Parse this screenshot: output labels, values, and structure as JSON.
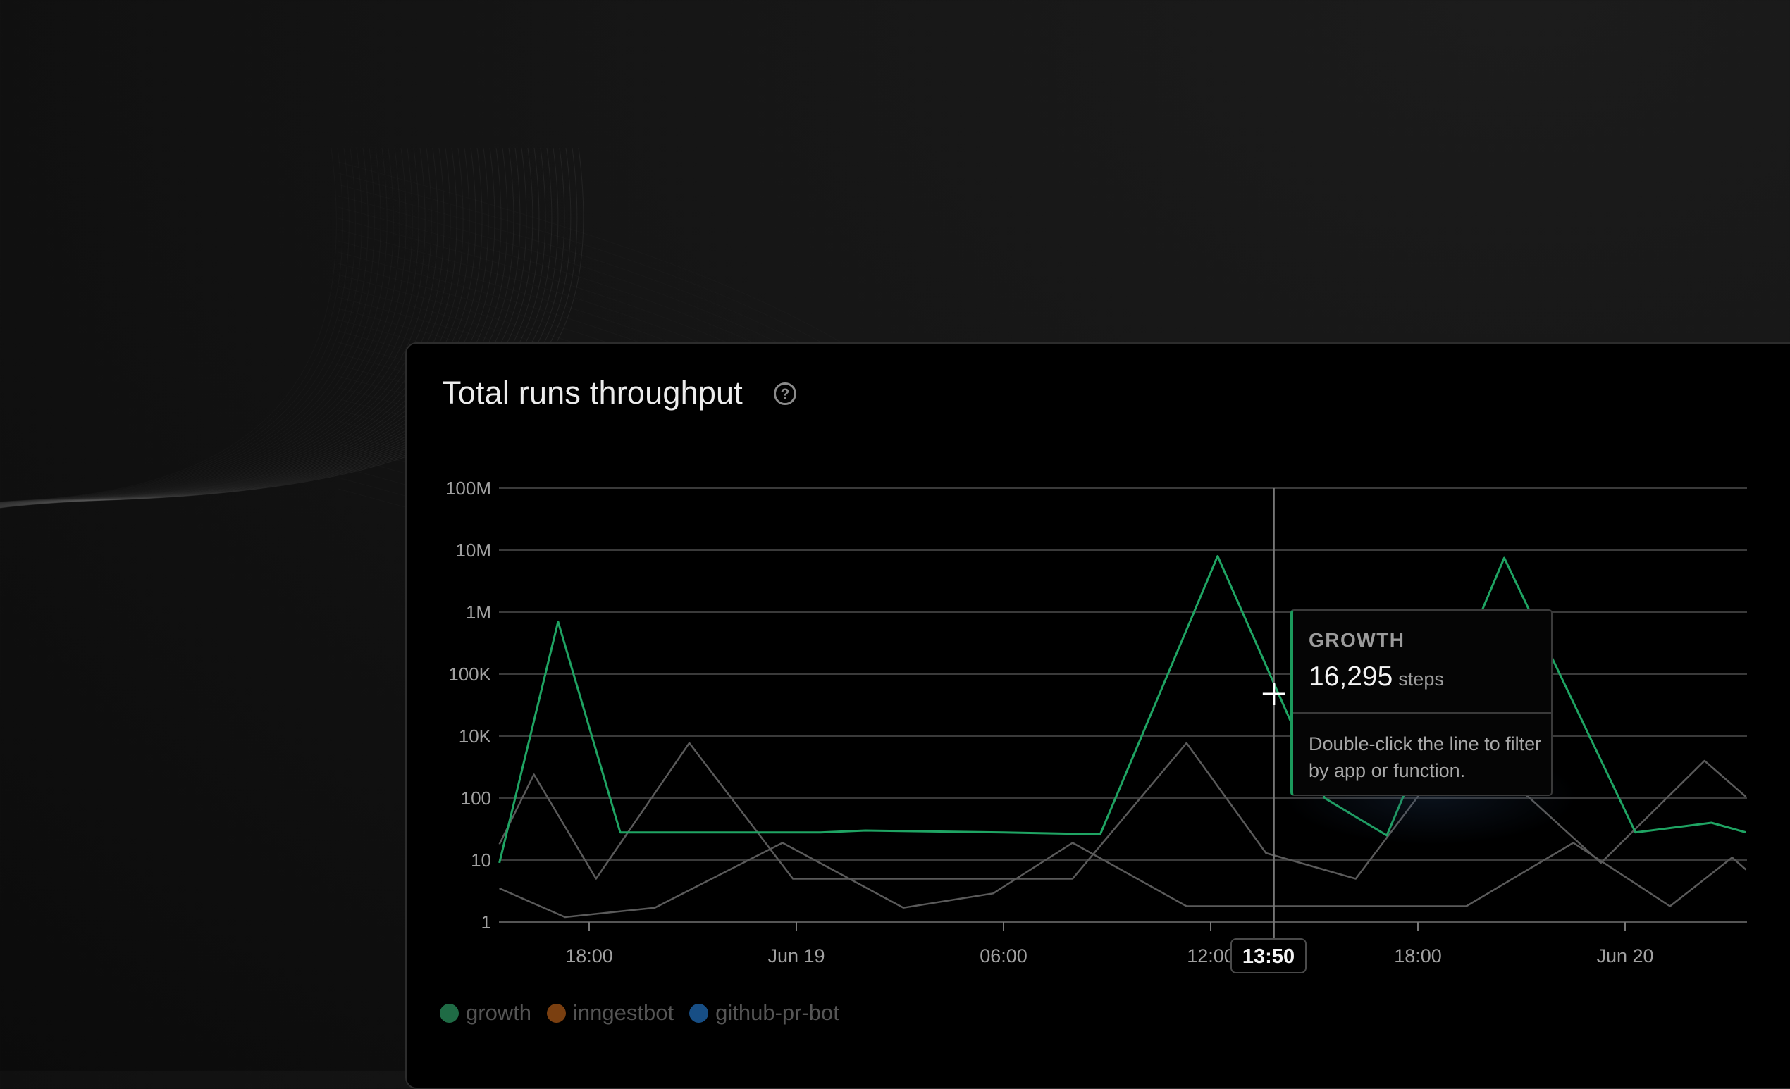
{
  "card": {
    "title": "Total runs throughput",
    "help_icon": "question-circle-icon"
  },
  "tooltip": {
    "series": "GROWTH",
    "value": "16,295",
    "unit": "steps",
    "hint": "Double-click the line to filter by app or function.",
    "accent": "#1b9a5c"
  },
  "hover_time": "13:50",
  "legend": [
    {
      "label": "growth",
      "color": "#1f6b45"
    },
    {
      "label": "inngestbot",
      "color": "#7a3f10"
    },
    {
      "label": "github-pr-bot",
      "color": "#174e85"
    }
  ],
  "chart_data": {
    "type": "line",
    "title": "Total runs throughput",
    "y_scale": "log",
    "y_ticks": [
      "1",
      "10",
      "100",
      "10K",
      "100K",
      "1M",
      "10M",
      "100M"
    ],
    "y_tick_values": [
      1,
      10,
      100,
      10000,
      100000,
      1000000,
      10000000,
      100000000
    ],
    "x_ticks": [
      "18:00",
      "Jun 19",
      "06:00",
      "12:00",
      "18:00",
      "Jun 20"
    ],
    "x_tick_times": [
      "Jun 18 18:00",
      "Jun 19 00:00",
      "Jun 19 06:00",
      "Jun 19 12:00",
      "Jun 19 18:00",
      "Jun 20 00:00"
    ],
    "x_range": [
      "Jun 18 15:23",
      "Jun 20 03:32"
    ],
    "grid": true,
    "legend_position": "bottom-left",
    "hover_x": "Jun 19 13:50",
    "series": [
      {
        "name": "growth",
        "color": "#1fa463",
        "highlighted": true,
        "x": [
          "Jun 18 15:24",
          "Jun 18 17:06",
          "Jun 18 18:54",
          "Jun 19 00:42",
          "Jun 19 02:00",
          "Jun 19 06:00",
          "Jun 19 08:48",
          "Jun 19 12:12",
          "Jun 19 15:18",
          "Jun 19 17:06",
          "Jun 19 17:36",
          "Jun 19 20:30",
          "Jun 20 00:18",
          "Jun 20 02:30",
          "Jun 20 03:30"
        ],
        "y": [
          9,
          700000,
          28,
          28,
          30,
          28,
          26,
          8000000,
          100,
          25,
          130,
          7500000,
          28,
          40,
          28
        ]
      },
      {
        "name": "inngestbot",
        "color": "#5a5a5a",
        "highlighted": false,
        "x": [
          "Jun 18 15:24",
          "Jun 18 16:24",
          "Jun 18 18:12",
          "Jun 18 20:54",
          "Jun 18 23:54",
          "Jun 19 08:00",
          "Jun 19 11:18",
          "Jun 19 13:36",
          "Jun 19 16:12",
          "Jun 19 18:12",
          "Jun 19 19:42",
          "Jun 19 21:12",
          "Jun 19 23:18",
          "Jun 20 02:18",
          "Jun 20 03:30"
        ],
        "y": [
          18,
          580,
          5,
          6000,
          5,
          5,
          6000,
          13,
          5,
          220,
          1600,
          110,
          9,
          1600,
          110
        ]
      },
      {
        "name": "github-pr-bot",
        "color": "#5a5a5a",
        "highlighted": false,
        "x": [
          "Jun 18 15:24",
          "Jun 18 17:18",
          "Jun 18 19:54",
          "Jun 18 23:36",
          "Jun 19 03:06",
          "Jun 19 05:42",
          "Jun 19 08:00",
          "Jun 19 11:18",
          "Jun 19 19:24",
          "Jun 19 22:30",
          "Jun 20 01:18",
          "Jun 20 03:06",
          "Jun 20 03:30"
        ],
        "y": [
          3.5,
          1.2,
          1.7,
          19,
          1.7,
          2.9,
          19,
          1.8,
          1.8,
          19,
          1.8,
          11,
          7
        ]
      }
    ]
  }
}
